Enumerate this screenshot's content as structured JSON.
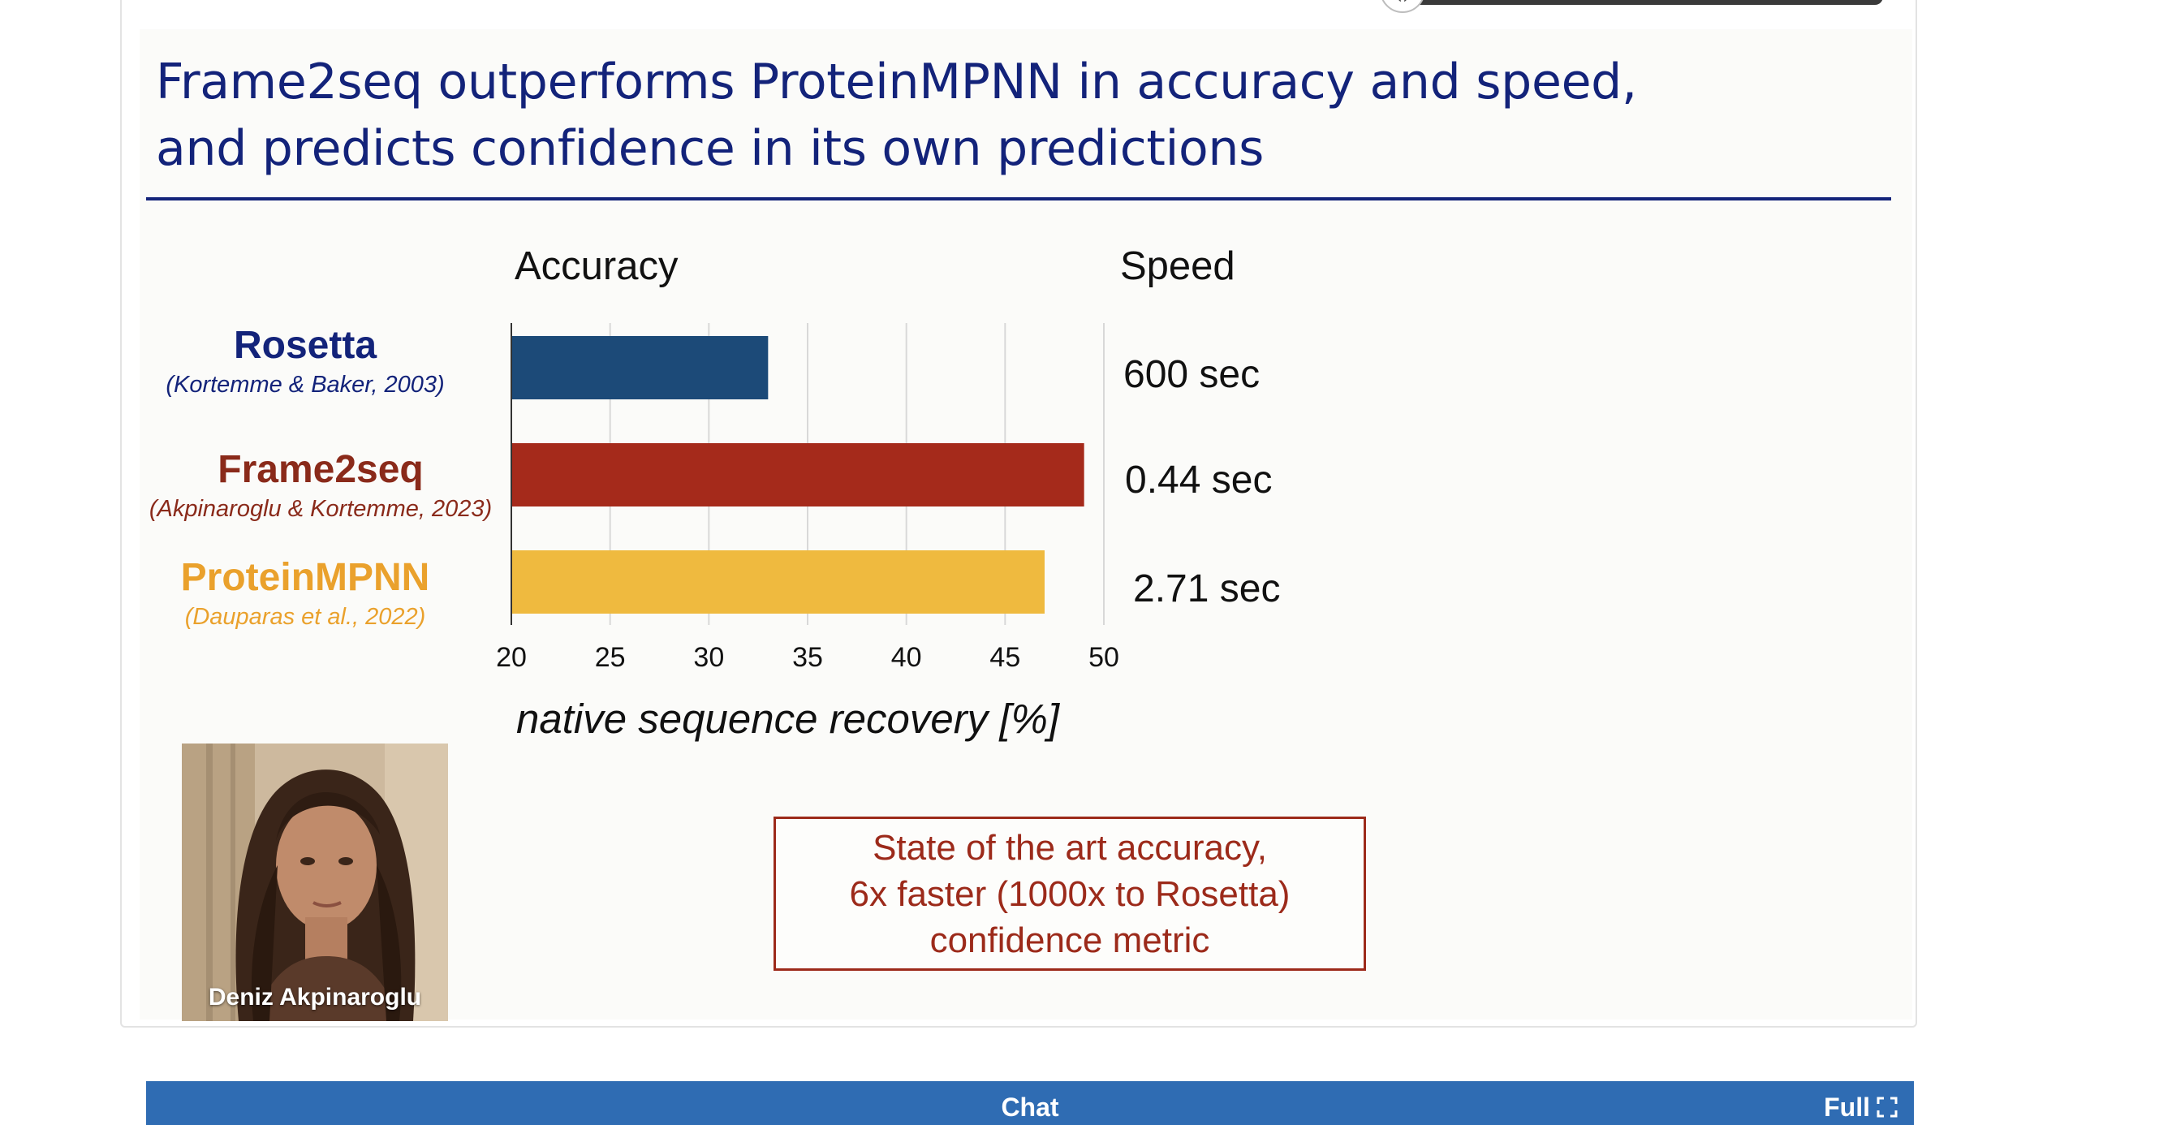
{
  "slide": {
    "title_lines": [
      "Frame2seq outperforms ProteinMPNN in accuracy and speed,",
      "and predicts confidence in its own predictions"
    ],
    "accuracy_heading": "Accuracy",
    "speed_heading": "Speed",
    "methods": [
      {
        "name": "Rosetta",
        "citation": "(Kortemme & Baker, 2003)",
        "speed": "600 sec",
        "color": "#1c4a78"
      },
      {
        "name": "Frame2seq",
        "citation": "(Akpinaroglu & Kortemme, 2023)",
        "speed": "0.44 sec",
        "color": "#a52a1b"
      },
      {
        "name": "ProteinMPNN",
        "citation": "(Dauparas et al., 2022)",
        "speed": "2.71 sec",
        "color": "#efba3f"
      }
    ],
    "photo_caption": "Deniz Akpinaroglu",
    "callout_lines": [
      "State of the art accuracy,",
      "6x faster (1000x to Rosetta)",
      "confidence metric"
    ]
  },
  "chart_data": {
    "type": "bar",
    "orientation": "horizontal",
    "categories": [
      "Rosetta",
      "Frame2seq",
      "ProteinMPNN"
    ],
    "values": [
      33,
      49,
      47
    ],
    "xlabel": "native sequence recovery [%]",
    "xlim": [
      20,
      50
    ],
    "xticks": [
      20,
      25,
      30,
      35,
      40,
      45,
      50
    ],
    "grid": true
  },
  "chat_bar": {
    "label": "Chat",
    "full_label": "Full"
  }
}
